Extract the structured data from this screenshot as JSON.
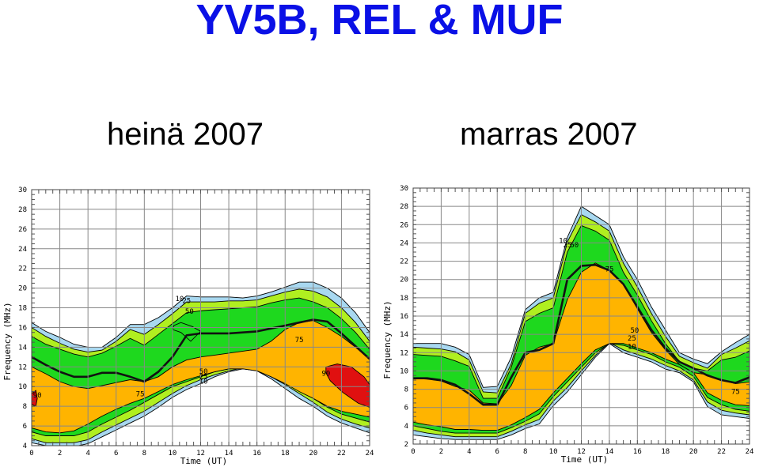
{
  "title": "YV5B, REL & MUF",
  "panels": [
    {
      "subtitle": "heinä 2007"
    },
    {
      "subtitle": "marras 2007"
    }
  ],
  "axis": {
    "ylabel": "Frequency (MHz)",
    "xlabel": "Time (UT)",
    "x_ticks": [
      "0",
      "2",
      "4",
      "6",
      "8",
      "10",
      "12",
      "14",
      "16",
      "18",
      "20",
      "22",
      "24"
    ],
    "y_ticks": [
      "2",
      "4",
      "6",
      "8",
      "10",
      "12",
      "14",
      "16",
      "18",
      "20",
      "22",
      "24",
      "26",
      "28",
      "30"
    ]
  },
  "colors": {
    "band_10": "#a8d8f0",
    "band_25": "#b0ef20",
    "band_50": "#1ed81e",
    "band_75": "#ffb400",
    "band_90": "#e01010",
    "muf_line": "#111111",
    "grid": "#888888"
  },
  "chart_data": [
    {
      "type": "area",
      "title": "heinä 2007",
      "xlabel": "Time (UT)",
      "ylabel": "Frequency (MHz)",
      "xlim": [
        0,
        24
      ],
      "ylim": [
        4,
        30
      ],
      "grid": true,
      "contour_labels": [
        {
          "text": "10",
          "x": 10.2,
          "y": 18.7
        },
        {
          "text": "25",
          "x": 10.7,
          "y": 18.5
        },
        {
          "text": "50",
          "x": 10.9,
          "y": 17.4
        },
        {
          "text": "75",
          "x": 7.4,
          "y": 9.0
        },
        {
          "text": "75",
          "x": 18.7,
          "y": 14.5
        },
        {
          "text": "50",
          "x": 11.9,
          "y": 11.3
        },
        {
          "text": "25",
          "x": 11.9,
          "y": 10.8
        },
        {
          "text": "10",
          "x": 11.9,
          "y": 10.3
        },
        {
          "text": "90",
          "x": 0.1,
          "y": 8.9
        },
        {
          "text": "90",
          "x": 20.6,
          "y": 11.1
        }
      ],
      "x": [
        0,
        1,
        2,
        3,
        4,
        5,
        6,
        7,
        8,
        9,
        10,
        11,
        12,
        13,
        14,
        15,
        16,
        17,
        18,
        19,
        20,
        21,
        22,
        23,
        24
      ],
      "bands": [
        {
          "name": "10",
          "upper": [
            16.5,
            15.6,
            15.0,
            14.3,
            14.0,
            14.0,
            15.0,
            16.3,
            16.3,
            17.0,
            18.0,
            19.2,
            19.1,
            19.1,
            19.1,
            19.0,
            19.2,
            19.6,
            20.1,
            20.6,
            20.6,
            20.0,
            19.0,
            17.5,
            15.5
          ],
          "lower": [
            4.3,
            4.0,
            3.9,
            3.9,
            4.2,
            4.9,
            5.6,
            6.3,
            7.0,
            7.9,
            8.9,
            9.7,
            10.3,
            11.0,
            11.5,
            11.8,
            11.6,
            10.8,
            9.8,
            8.8,
            8.0,
            7.0,
            6.3,
            5.8,
            5.3
          ]
        },
        {
          "name": "25",
          "upper": [
            16.0,
            15.1,
            14.4,
            13.8,
            13.5,
            13.7,
            14.6,
            15.8,
            15.3,
            16.3,
            17.4,
            18.6,
            18.6,
            18.6,
            18.7,
            18.7,
            18.8,
            19.2,
            19.6,
            19.9,
            19.7,
            19.1,
            18.0,
            16.5,
            14.6
          ],
          "lower": [
            4.7,
            4.3,
            4.3,
            4.3,
            4.6,
            5.4,
            6.1,
            6.8,
            7.5,
            8.4,
            9.3,
            10.1,
            10.7,
            11.2,
            11.6,
            11.9,
            11.8,
            11.0,
            10.2,
            9.3,
            8.4,
            7.4,
            6.7,
            6.2,
            5.8
          ]
        },
        {
          "name": "50",
          "upper": [
            15.1,
            14.3,
            13.8,
            13.3,
            13.0,
            13.4,
            14.1,
            14.9,
            14.2,
            15.3,
            16.4,
            17.5,
            17.7,
            17.8,
            17.9,
            18.0,
            18.1,
            18.5,
            18.8,
            19.0,
            18.6,
            18.0,
            16.9,
            15.5,
            13.8
          ],
          "lower": [
            5.4,
            5.0,
            5.0,
            5.0,
            5.4,
            6.2,
            6.9,
            7.6,
            8.4,
            9.2,
            10.0,
            10.5,
            11.0,
            11.5,
            11.8,
            11.9,
            11.8,
            11.2,
            10.5,
            9.6,
            8.8,
            7.9,
            7.2,
            6.8,
            6.4
          ]
        },
        {
          "name": "75",
          "upper": [
            12.0,
            11.3,
            10.5,
            10.0,
            9.8,
            10.1,
            10.4,
            10.7,
            10.5,
            11.0,
            12.0,
            12.7,
            13.0,
            13.2,
            13.4,
            13.6,
            13.8,
            14.6,
            15.8,
            16.5,
            16.7,
            16.0,
            15.1,
            14.0,
            12.8
          ],
          "lower": [
            5.8,
            5.4,
            5.3,
            5.5,
            6.2,
            7.0,
            7.7,
            8.3,
            8.8,
            9.5,
            10.2,
            10.7,
            11.1,
            11.5,
            11.8,
            11.8,
            11.6,
            11.0,
            10.3,
            9.5,
            8.8,
            8.0,
            7.5,
            7.2,
            6.9
          ]
        }
      ],
      "region_90": [
        {
          "x": [
            0.0,
            0.3,
            0.4,
            0.3,
            0.0
          ],
          "y": [
            9.3,
            9.6,
            8.8,
            8.0,
            8.2
          ]
        },
        {
          "x": [
            20.9,
            21.7,
            22.7,
            23.6,
            24.0,
            24.0,
            23.2,
            22.1,
            21.2,
            20.9
          ],
          "y": [
            12.0,
            12.3,
            12.0,
            11.0,
            10.2,
            7.9,
            8.3,
            9.4,
            10.6,
            11.4
          ]
        }
      ],
      "hole_75": {
        "x": [
          10.0,
          10.6,
          11.3,
          12.0,
          11.4,
          10.6,
          10.1
        ],
        "y": [
          15.8,
          15.5,
          14.6,
          15.6,
          16.1,
          16.5,
          16.2
        ]
      },
      "series": [
        {
          "name": "MUF",
          "values": [
            13.0,
            12.2,
            11.5,
            11.0,
            11.0,
            11.4,
            11.4,
            11.0,
            10.5,
            11.5,
            13.0,
            15.2,
            15.4,
            15.4,
            15.4,
            15.5,
            15.6,
            15.9,
            16.2,
            16.5,
            16.8,
            16.6,
            15.4,
            14.1,
            12.8
          ]
        }
      ]
    },
    {
      "type": "area",
      "title": "marras 2007",
      "xlabel": "Time (UT)",
      "ylabel": "Frequency (MHz)",
      "xlim": [
        0,
        24
      ],
      "ylim": [
        2,
        30
      ],
      "grid": true,
      "contour_labels": [
        {
          "text": "10",
          "x": 10.4,
          "y": 24.0
        },
        {
          "text": "25",
          "x": 10.7,
          "y": 23.5
        },
        {
          "text": "50",
          "x": 11.2,
          "y": 23.5
        },
        {
          "text": "75",
          "x": 13.7,
          "y": 20.9
        },
        {
          "text": "50",
          "x": 15.5,
          "y": 14.2
        },
        {
          "text": "25",
          "x": 15.3,
          "y": 13.3
        },
        {
          "text": "10",
          "x": 15.3,
          "y": 12.4
        },
        {
          "text": "75",
          "x": 22.7,
          "y": 7.5
        }
      ],
      "x": [
        0,
        1,
        2,
        3,
        4,
        5,
        6,
        7,
        8,
        9,
        10,
        11,
        12,
        13,
        14,
        15,
        16,
        17,
        18,
        19,
        20,
        21,
        22,
        23,
        24
      ],
      "bands": [
        {
          "name": "10",
          "upper": [
            13.0,
            13.0,
            13.0,
            12.6,
            11.8,
            8.2,
            8.3,
            11.5,
            16.7,
            18.0,
            18.6,
            24.6,
            28.0,
            27.0,
            26.0,
            22.5,
            20.0,
            17.0,
            14.5,
            12.0,
            11.3,
            10.8,
            12.1,
            13.1,
            14.0
          ],
          "lower": [
            3.0,
            2.8,
            2.6,
            2.5,
            2.5,
            2.5,
            2.5,
            3.0,
            3.7,
            4.2,
            6.2,
            7.7,
            9.6,
            11.5,
            13.0,
            12.0,
            11.5,
            11.0,
            10.2,
            9.8,
            8.8,
            6.1,
            5.2,
            5.0,
            4.8
          ]
        },
        {
          "name": "25",
          "upper": [
            12.6,
            12.5,
            12.4,
            12.1,
            11.2,
            7.7,
            7.6,
            10.8,
            16.3,
            17.4,
            18.0,
            24.1,
            27.1,
            26.3,
            25.3,
            21.8,
            19.2,
            16.3,
            13.8,
            11.6,
            10.9,
            10.3,
            11.8,
            12.5,
            13.3
          ],
          "lower": [
            3.5,
            3.2,
            3.0,
            2.8,
            2.8,
            2.8,
            2.8,
            3.4,
            4.1,
            4.7,
            6.7,
            8.2,
            10.0,
            11.7,
            13.1,
            12.3,
            11.8,
            11.3,
            10.6,
            10.0,
            9.0,
            6.6,
            5.7,
            5.4,
            5.2
          ]
        },
        {
          "name": "50",
          "upper": [
            11.8,
            11.7,
            11.6,
            11.1,
            10.5,
            7.0,
            7.0,
            10.4,
            15.4,
            16.3,
            16.9,
            23.0,
            25.9,
            25.3,
            24.3,
            20.8,
            18.3,
            15.5,
            13.0,
            11.0,
            10.3,
            10.0,
            11.2,
            11.5,
            12.2
          ],
          "lower": [
            4.0,
            3.7,
            3.4,
            3.2,
            3.2,
            3.2,
            3.2,
            3.8,
            4.5,
            5.3,
            7.2,
            8.8,
            10.4,
            12.0,
            13.0,
            12.8,
            12.3,
            11.8,
            11.0,
            10.4,
            9.4,
            7.1,
            6.3,
            5.8,
            5.6
          ]
        },
        {
          "name": "75",
          "upper": [
            9.2,
            9.1,
            8.9,
            8.3,
            7.9,
            6.5,
            6.4,
            8.4,
            11.7,
            12.6,
            13.0,
            17.8,
            20.8,
            21.8,
            21.0,
            19.5,
            16.8,
            14.2,
            12.3,
            10.7,
            9.8,
            9.6,
            9.0,
            8.6,
            8.8
          ],
          "lower": [
            4.4,
            4.1,
            3.9,
            3.6,
            3.6,
            3.5,
            3.5,
            4.1,
            4.9,
            5.8,
            7.6,
            9.2,
            10.8,
            12.3,
            13.0,
            13.0,
            12.5,
            12.0,
            11.3,
            10.7,
            9.8,
            7.6,
            6.8,
            6.3,
            6.2
          ]
        }
      ],
      "region_90": [],
      "hole_75": null,
      "series": [
        {
          "name": "MUF",
          "values": [
            9.2,
            9.2,
            9.0,
            8.5,
            7.5,
            6.3,
            6.3,
            9.3,
            12.0,
            12.3,
            13.0,
            20.0,
            21.5,
            21.6,
            21.0,
            19.5,
            17.0,
            14.5,
            12.5,
            11.0,
            10.3,
            9.5,
            9.0,
            8.7,
            9.3
          ]
        }
      ]
    }
  ]
}
